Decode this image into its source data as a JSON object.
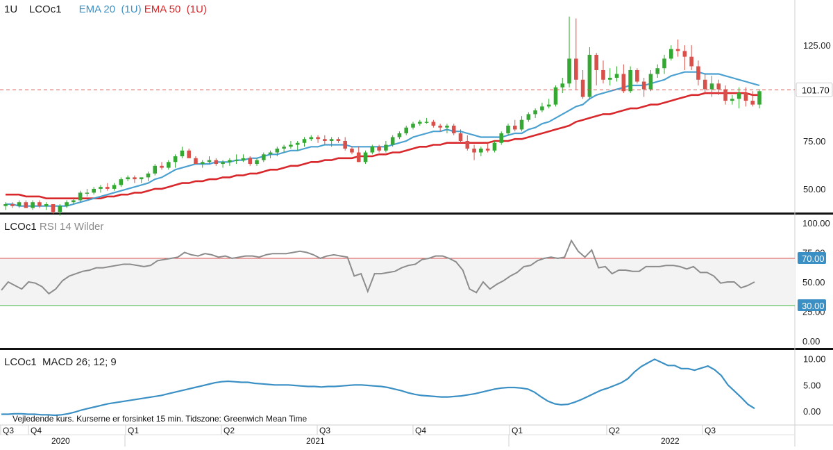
{
  "header": {
    "interval": "1U",
    "symbol": "LCOc1",
    "ema20_label": "EMA 20",
    "ema20_param": "(1U)",
    "ema50_label": "EMA 50",
    "ema50_param": "(1U)"
  },
  "rsi_title": {
    "symbol": "LCOc1",
    "label": "RSI 14 Wilder"
  },
  "macd_title": {
    "symbol": "LCOc1",
    "label": "MACD 26; 12; 9"
  },
  "footnote": "Vejledende kurs. Kurserne er forsinket 15 min.   Tidszone: Greenwich Mean Time",
  "colors": {
    "up": "#35a834",
    "down": "#d9504b",
    "ema20": "#4aa0d0",
    "ema50": "#d8282b",
    "rsi": "#8c8c8c",
    "macd": "#3a8fc4",
    "last_price_badge": "#ffffff",
    "level_badge": "#3a8fc4"
  },
  "chart_data": [
    {
      "type": "candlestick",
      "interval": "1U",
      "last_price": "101.70",
      "ylim": [
        38,
        145
      ],
      "yticks": [
        "50.00",
        "75.00",
        "125.00"
      ],
      "x_quarters": [
        "Q3",
        "Q4",
        "Q1",
        "Q2",
        "Q3",
        "Q4",
        "Q1",
        "Q2",
        "Q3"
      ],
      "x_years": [
        "2020",
        "2021",
        "2022"
      ],
      "ohlc": [
        [
          41,
          43,
          39,
          42
        ],
        [
          42,
          43,
          40,
          41
        ],
        [
          41,
          44,
          40,
          43
        ],
        [
          43,
          44,
          40,
          40
        ],
        [
          40,
          44,
          39,
          43
        ],
        [
          43,
          44,
          40,
          41
        ],
        [
          41,
          43,
          39,
          42
        ],
        [
          42,
          42,
          37,
          38
        ],
        [
          38,
          42,
          36,
          41
        ],
        [
          41,
          44,
          40,
          43
        ],
        [
          43,
          45,
          42,
          44
        ],
        [
          44,
          49,
          43,
          48
        ],
        [
          48,
          50,
          46,
          48
        ],
        [
          48,
          51,
          47,
          50
        ],
        [
          50,
          52,
          48,
          51
        ],
        [
          51,
          53,
          49,
          50
        ],
        [
          50,
          53,
          49,
          52
        ],
        [
          52,
          56,
          51,
          55
        ],
        [
          55,
          57,
          54,
          56
        ],
        [
          56,
          57,
          53,
          55
        ],
        [
          55,
          56,
          53,
          56
        ],
        [
          56,
          59,
          54,
          58
        ],
        [
          58,
          63,
          57,
          62
        ],
        [
          62,
          64,
          60,
          61
        ],
        [
          61,
          65,
          60,
          64
        ],
        [
          64,
          68,
          61,
          67
        ],
        [
          67,
          72,
          66,
          70
        ],
        [
          70,
          71,
          66,
          66
        ],
        [
          66,
          67,
          63,
          63
        ],
        [
          63,
          65,
          61,
          64
        ],
        [
          64,
          67,
          63,
          65
        ],
        [
          65,
          66,
          62,
          63
        ],
        [
          63,
          65,
          61,
          64
        ],
        [
          64,
          66,
          62,
          65
        ],
        [
          65,
          68,
          63,
          65
        ],
        [
          65,
          68,
          64,
          66
        ],
        [
          66,
          67,
          62,
          63
        ],
        [
          63,
          66,
          62,
          65
        ],
        [
          65,
          69,
          64,
          68
        ],
        [
          68,
          70,
          66,
          69
        ],
        [
          69,
          72,
          67,
          71
        ],
        [
          71,
          73,
          69,
          72
        ],
        [
          72,
          75,
          71,
          73
        ],
        [
          73,
          75,
          70,
          74
        ],
        [
          74,
          77,
          72,
          76
        ],
        [
          76,
          78,
          75,
          77
        ],
        [
          77,
          78,
          74,
          76
        ],
        [
          76,
          78,
          73,
          75
        ],
        [
          75,
          77,
          72,
          76
        ],
        [
          76,
          77,
          74,
          75
        ],
        [
          75,
          77,
          70,
          71
        ],
        [
          71,
          72,
          68,
          69
        ],
        [
          69,
          72,
          64,
          64
        ],
        [
          64,
          70,
          63,
          69
        ],
        [
          69,
          73,
          68,
          72
        ],
        [
          72,
          73,
          69,
          70
        ],
        [
          70,
          75,
          69,
          73
        ],
        [
          73,
          78,
          72,
          77
        ],
        [
          77,
          80,
          76,
          79
        ],
        [
          79,
          83,
          78,
          82
        ],
        [
          82,
          85,
          81,
          84
        ],
        [
          84,
          86,
          83,
          85
        ],
        [
          85,
          87,
          84,
          85
        ],
        [
          85,
          86,
          82,
          83
        ],
        [
          83,
          84,
          80,
          82
        ],
        [
          82,
          84,
          79,
          83
        ],
        [
          83,
          84,
          78,
          79
        ],
        [
          79,
          81,
          74,
          75
        ],
        [
          75,
          78,
          70,
          71
        ],
        [
          71,
          73,
          65,
          69
        ],
        [
          69,
          72,
          67,
          71
        ],
        [
          71,
          74,
          69,
          70
        ],
        [
          70,
          75,
          69,
          74
        ],
        [
          74,
          80,
          73,
          79
        ],
        [
          79,
          84,
          78,
          83
        ],
        [
          83,
          86,
          80,
          81
        ],
        [
          81,
          88,
          80,
          86
        ],
        [
          86,
          90,
          85,
          89
        ],
        [
          89,
          92,
          87,
          91
        ],
        [
          91,
          95,
          90,
          93
        ],
        [
          93,
          97,
          92,
          94
        ],
        [
          94,
          104,
          93,
          103
        ],
        [
          103,
          108,
          100,
          105
        ],
        [
          105,
          140,
          103,
          118
        ],
        [
          118,
          139,
          102,
          107
        ],
        [
          107,
          112,
          97,
          98
        ],
        [
          98,
          124,
          97,
          120
        ],
        [
          120,
          121,
          104,
          112
        ],
        [
          112,
          117,
          105,
          107
        ],
        [
          107,
          113,
          104,
          108
        ],
        [
          108,
          114,
          106,
          110
        ],
        [
          110,
          115,
          100,
          101
        ],
        [
          101,
          114,
          100,
          112
        ],
        [
          112,
          113,
          105,
          106
        ],
        [
          106,
          108,
          98,
          102
        ],
        [
          102,
          112,
          101,
          110
        ],
        [
          110,
          115,
          108,
          113
        ],
        [
          113,
          120,
          110,
          118
        ],
        [
          118,
          125,
          117,
          123
        ],
        [
          123,
          128,
          119,
          122
        ],
        [
          122,
          125,
          112,
          119
        ],
        [
          119,
          125,
          112,
          114
        ],
        [
          114,
          117,
          104,
          107
        ],
        [
          107,
          110,
          100,
          102
        ],
        [
          102,
          109,
          98,
          105
        ],
        [
          105,
          107,
          99,
          102
        ],
        [
          102,
          104,
          94,
          96
        ],
        [
          96,
          99,
          94,
          97
        ],
        [
          97,
          103,
          92,
          100
        ],
        [
          100,
          103,
          93,
          96
        ],
        [
          96,
          101,
          93,
          94
        ],
        [
          94,
          102,
          92,
          101
        ]
      ],
      "ema20": [
        42,
        42,
        41,
        41,
        41,
        41,
        41,
        41,
        41,
        41,
        42,
        43,
        44,
        45,
        46,
        47,
        48,
        49,
        50,
        51,
        52,
        53,
        55,
        56,
        58,
        60,
        61,
        62,
        63,
        63,
        63,
        64,
        64,
        64,
        65,
        65,
        66,
        66,
        67,
        68,
        68,
        69,
        70,
        70,
        71,
        72,
        72,
        73,
        73,
        73,
        73,
        72,
        72,
        72,
        72,
        72,
        72,
        73,
        74,
        75,
        77,
        78,
        79,
        80,
        80,
        81,
        80,
        80,
        79,
        78,
        77,
        77,
        77,
        77,
        78,
        79,
        79,
        81,
        82,
        84,
        85,
        87,
        89,
        91,
        93,
        94,
        97,
        99,
        100,
        101,
        102,
        103,
        104,
        104,
        104,
        105,
        106,
        107,
        109,
        110,
        111,
        111,
        111,
        110,
        110,
        110,
        109,
        108,
        107,
        106,
        105,
        104
      ],
      "ema50": [
        47,
        47,
        47,
        46,
        46,
        46,
        45,
        45,
        45,
        45,
        45,
        45,
        45,
        45,
        45,
        46,
        46,
        47,
        47,
        48,
        48,
        49,
        50,
        50,
        51,
        52,
        53,
        53,
        54,
        54,
        55,
        55,
        56,
        56,
        57,
        57,
        58,
        58,
        59,
        60,
        60,
        61,
        62,
        62,
        63,
        64,
        64,
        65,
        65,
        66,
        66,
        66,
        67,
        67,
        67,
        68,
        68,
        69,
        69,
        70,
        71,
        72,
        72,
        73,
        73,
        74,
        74,
        74,
        74,
        74,
        74,
        74,
        75,
        75,
        75,
        76,
        76,
        77,
        78,
        79,
        80,
        81,
        82,
        83,
        85,
        86,
        87,
        88,
        89,
        89,
        90,
        91,
        92,
        92,
        93,
        94,
        94,
        95,
        96,
        97,
        98,
        99,
        99,
        100,
        100,
        100,
        100,
        100,
        100,
        100,
        99,
        99
      ]
    },
    {
      "type": "line",
      "title": "RSI 14 Wilder",
      "ylim": [
        0,
        100
      ],
      "yticks": [
        "0.00",
        "25.00",
        "50.00",
        "75.00",
        "100.00"
      ],
      "levels": [
        "70.00",
        "30.00"
      ],
      "values": [
        43,
        50,
        47,
        44,
        50,
        49,
        46,
        40,
        44,
        51,
        55,
        57,
        59,
        60,
        62,
        62,
        63,
        64,
        65,
        65,
        64,
        63,
        64,
        68,
        69,
        70,
        71,
        75,
        73,
        72,
        74,
        73,
        71,
        72,
        70,
        71,
        72,
        72,
        71,
        73,
        74,
        74,
        74,
        75,
        76,
        75,
        73,
        70,
        72,
        73,
        72,
        71,
        55,
        57,
        42,
        57,
        57,
        58,
        59,
        62,
        64,
        65,
        69,
        70,
        72,
        72,
        70,
        67,
        60,
        44,
        41,
        50,
        44,
        48,
        51,
        55,
        58,
        63,
        64,
        68,
        70,
        71,
        70,
        71,
        85,
        76,
        71,
        77,
        62,
        63,
        57,
        60,
        60,
        59,
        59,
        63,
        63,
        63,
        64,
        64,
        63,
        61,
        63,
        58,
        58,
        55,
        49,
        50,
        50,
        45,
        47,
        50
      ]
    },
    {
      "type": "line",
      "title": "MACD 26; 12; 9",
      "ylim": [
        -1.5,
        11
      ],
      "yticks": [
        "0.00",
        "5.00",
        "10.00"
      ],
      "values": [
        -0.6,
        -0.6,
        -0.5,
        -0.5,
        -0.6,
        -0.6,
        -0.7,
        -0.7,
        -0.8,
        -0.7,
        -0.5,
        -0.2,
        0.2,
        0.5,
        0.8,
        1.1,
        1.4,
        1.6,
        1.8,
        2.0,
        2.2,
        2.4,
        2.6,
        2.8,
        3.0,
        3.3,
        3.6,
        3.9,
        4.2,
        4.5,
        4.8,
        5.1,
        5.4,
        5.6,
        5.7,
        5.6,
        5.5,
        5.5,
        5.3,
        5.2,
        5.1,
        5.0,
        5.0,
        5.0,
        4.9,
        4.8,
        4.7,
        4.7,
        4.6,
        4.7,
        4.7,
        4.8,
        4.9,
        5.0,
        5.0,
        4.9,
        4.8,
        4.7,
        4.5,
        4.2,
        3.9,
        3.5,
        3.2,
        3.0,
        2.9,
        2.8,
        2.7,
        2.7,
        2.8,
        2.9,
        3.1,
        3.3,
        3.6,
        3.9,
        4.2,
        4.4,
        4.5,
        4.5,
        4.4,
        4.2,
        3.6,
        2.7,
        1.9,
        1.4,
        1.2,
        1.3,
        1.7,
        2.2,
        2.8,
        3.4,
        4.0,
        4.4,
        4.9,
        5.4,
        6.2,
        7.5,
        8.5,
        9.2,
        9.9,
        9.3,
        8.7,
        8.7,
        8.1,
        8.1,
        7.8,
        8.2,
        8.6,
        7.9,
        6.8,
        5.0,
        3.8,
        2.6,
        1.3,
        0.5
      ]
    }
  ]
}
